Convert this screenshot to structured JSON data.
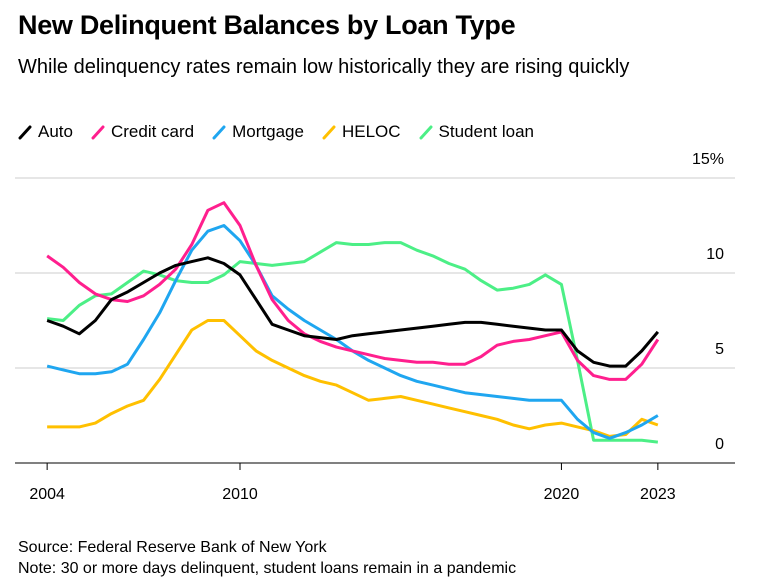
{
  "chart_data": {
    "type": "line",
    "title": "New Delinquent Balances by Loan Type",
    "subtitle": "While delinquency rates remain low historically they are rising quickly",
    "source": "Source: Federal Reserve Bank of New York",
    "note": "Note: 30 or more days delinquent, student loans remain in a pandemic",
    "x": [
      2004,
      2004.5,
      2005,
      2005.5,
      2006,
      2006.5,
      2007,
      2007.5,
      2008,
      2008.5,
      2009,
      2009.5,
      2010,
      2010.5,
      2011,
      2011.5,
      2012,
      2012.5,
      2013,
      2013.5,
      2014,
      2014.5,
      2015,
      2015.5,
      2016,
      2016.5,
      2017,
      2017.5,
      2018,
      2018.5,
      2019,
      2019.5,
      2020,
      2020.5,
      2021,
      2021.5,
      2022,
      2022.5,
      2023
    ],
    "series": [
      {
        "name": "Auto",
        "color": "#000000",
        "values": [
          7.5,
          7.2,
          6.8,
          7.5,
          8.6,
          9.0,
          9.5,
          10.0,
          10.4,
          10.6,
          10.8,
          10.5,
          9.9,
          8.6,
          7.3,
          7.0,
          6.7,
          6.6,
          6.5,
          6.7,
          6.8,
          6.9,
          7.0,
          7.1,
          7.2,
          7.3,
          7.4,
          7.4,
          7.3,
          7.2,
          7.1,
          7.0,
          7.0,
          5.9,
          5.3,
          5.1,
          5.1,
          5.9,
          6.9
        ]
      },
      {
        "name": "Credit card",
        "color": "#ff1f8e",
        "values": [
          10.9,
          10.3,
          9.5,
          8.9,
          8.6,
          8.5,
          8.8,
          9.4,
          10.2,
          11.5,
          13.3,
          13.7,
          12.5,
          10.4,
          8.6,
          7.5,
          6.8,
          6.4,
          6.1,
          5.9,
          5.7,
          5.5,
          5.4,
          5.3,
          5.3,
          5.2,
          5.2,
          5.6,
          6.2,
          6.4,
          6.5,
          6.7,
          6.9,
          5.4,
          4.6,
          4.4,
          4.4,
          5.2,
          6.5
        ]
      },
      {
        "name": "Mortgage",
        "color": "#1fa6f0",
        "values": [
          5.1,
          4.9,
          4.7,
          4.7,
          4.8,
          5.2,
          6.5,
          7.9,
          9.6,
          11.2,
          12.2,
          12.5,
          11.7,
          10.4,
          8.8,
          8.1,
          7.5,
          7.0,
          6.5,
          5.9,
          5.4,
          5.0,
          4.6,
          4.3,
          4.1,
          3.9,
          3.7,
          3.6,
          3.5,
          3.4,
          3.3,
          3.3,
          3.3,
          2.3,
          1.6,
          1.3,
          1.6,
          2.0,
          2.5
        ]
      },
      {
        "name": "HELOC",
        "color": "#ffc000",
        "values": [
          1.9,
          1.9,
          1.9,
          2.1,
          2.6,
          3.0,
          3.3,
          4.4,
          5.7,
          7.0,
          7.5,
          7.5,
          6.7,
          5.9,
          5.4,
          5.0,
          4.6,
          4.3,
          4.1,
          3.7,
          3.3,
          3.4,
          3.5,
          3.3,
          3.1,
          2.9,
          2.7,
          2.5,
          2.3,
          2.0,
          1.8,
          2.0,
          2.1,
          1.9,
          1.7,
          1.4,
          1.5,
          2.3,
          2.0
        ]
      },
      {
        "name": "Student loan",
        "color": "#4cef86",
        "values": [
          7.6,
          7.5,
          8.3,
          8.8,
          8.9,
          9.5,
          10.1,
          9.9,
          9.6,
          9.5,
          9.5,
          9.9,
          10.6,
          10.5,
          10.4,
          10.5,
          10.6,
          11.1,
          11.6,
          11.5,
          11.5,
          11.6,
          11.6,
          11.2,
          10.9,
          10.5,
          10.2,
          9.6,
          9.1,
          9.2,
          9.4,
          9.9,
          9.4,
          5.4,
          1.2,
          1.2,
          1.2,
          1.2,
          1.1
        ]
      }
    ],
    "xlim": [
      2003,
      2025.4
    ],
    "xticks": [
      2004,
      2010,
      2020,
      2023
    ],
    "ylim": [
      0,
      15
    ],
    "yticks": [
      0,
      5,
      10,
      {
        "value": 15,
        "label": "15%"
      }
    ],
    "grid": true
  }
}
